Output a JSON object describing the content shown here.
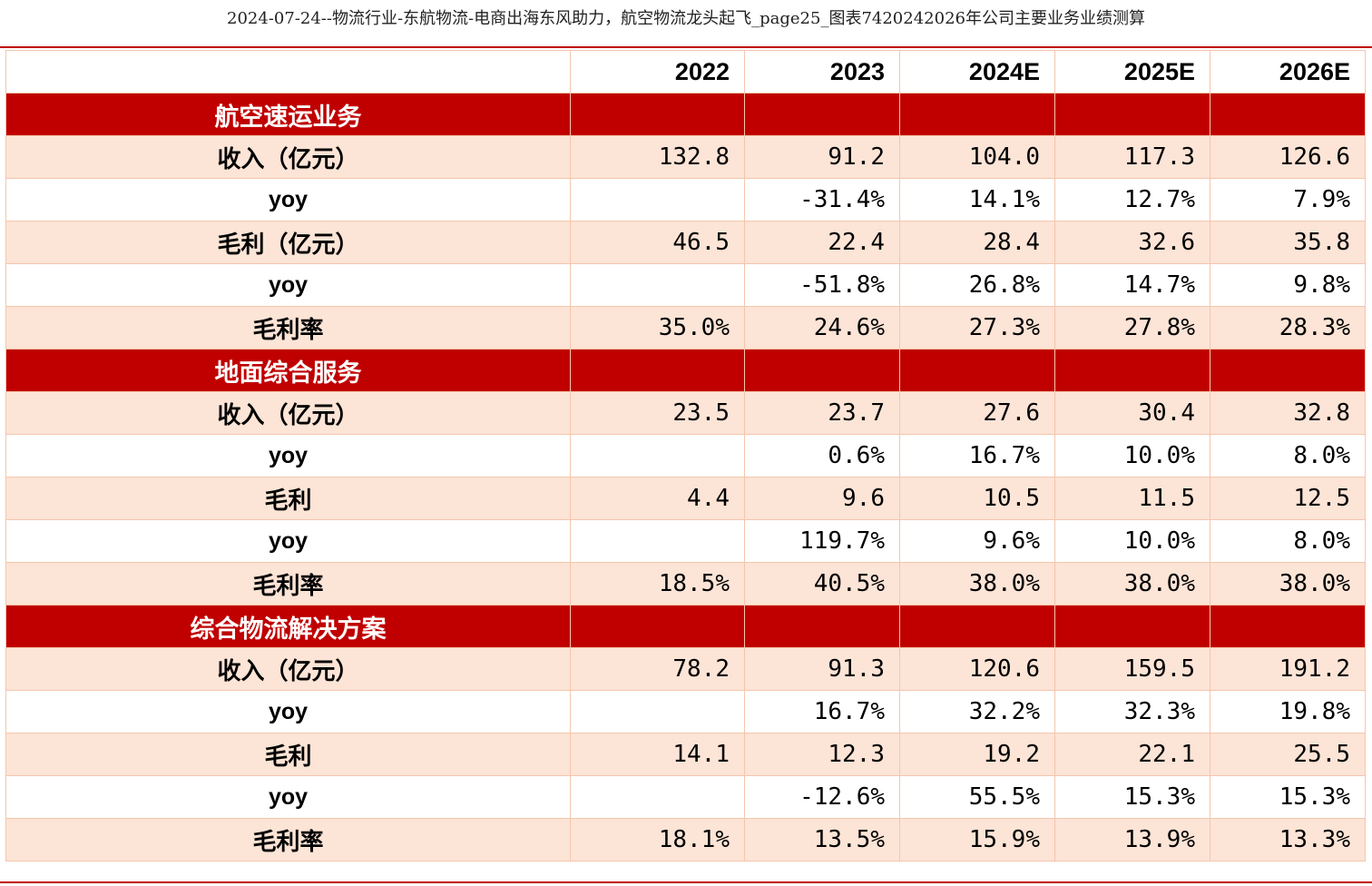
{
  "title": "2024-07-24--物流行业-东航物流-电商出海东风助力，航空物流龙头起飞_page25_图表7420242026年公司主要业务业绩测算",
  "columns": [
    "",
    "2022",
    "2023",
    "2024E",
    "2025E",
    "2026E"
  ],
  "sections": [
    {
      "name": "航空速运业务",
      "rows": [
        {
          "label": "收入（亿元）",
          "values": [
            "132.8",
            "91.2",
            "104.0",
            "117.3",
            "126.6"
          ]
        },
        {
          "label": "yoy",
          "values": [
            "",
            "-31.4%",
            "14.1%",
            "12.7%",
            "7.9%"
          ]
        },
        {
          "label": "毛利（亿元）",
          "values": [
            "46.5",
            "22.4",
            "28.4",
            "32.6",
            "35.8"
          ]
        },
        {
          "label": "yoy",
          "values": [
            "",
            "-51.8%",
            "26.8%",
            "14.7%",
            "9.8%"
          ]
        },
        {
          "label": "毛利率",
          "values": [
            "35.0%",
            "24.6%",
            "27.3%",
            "27.8%",
            "28.3%"
          ]
        }
      ]
    },
    {
      "name": "地面综合服务",
      "rows": [
        {
          "label": "收入（亿元）",
          "values": [
            "23.5",
            "23.7",
            "27.6",
            "30.4",
            "32.8"
          ]
        },
        {
          "label": "yoy",
          "values": [
            "",
            "0.6%",
            "16.7%",
            "10.0%",
            "8.0%"
          ]
        },
        {
          "label": "毛利",
          "values": [
            "4.4",
            "9.6",
            "10.5",
            "11.5",
            "12.5"
          ]
        },
        {
          "label": "yoy",
          "values": [
            "",
            "119.7%",
            "9.6%",
            "10.0%",
            "8.0%"
          ]
        },
        {
          "label": "毛利率",
          "values": [
            "18.5%",
            "40.5%",
            "38.0%",
            "38.0%",
            "38.0%"
          ]
        }
      ]
    },
    {
      "name": "综合物流解决方案",
      "rows": [
        {
          "label": "收入（亿元）",
          "values": [
            "78.2",
            "91.3",
            "120.6",
            "159.5",
            "191.2"
          ]
        },
        {
          "label": "yoy",
          "values": [
            "",
            "16.7%",
            "32.2%",
            "32.3%",
            "19.8%"
          ]
        },
        {
          "label": "毛利",
          "values": [
            "14.1",
            "12.3",
            "19.2",
            "22.1",
            "25.5"
          ]
        },
        {
          "label": "yoy",
          "values": [
            "",
            "-12.6%",
            "55.5%",
            "15.3%",
            "15.3%"
          ]
        },
        {
          "label": "毛利率",
          "values": [
            "18.1%",
            "13.5%",
            "15.9%",
            "13.9%",
            "13.3%"
          ]
        }
      ]
    }
  ],
  "colors": {
    "section_bg": "#c00000",
    "row_shade": "#fce4d6",
    "border": "#f4c6ad"
  }
}
